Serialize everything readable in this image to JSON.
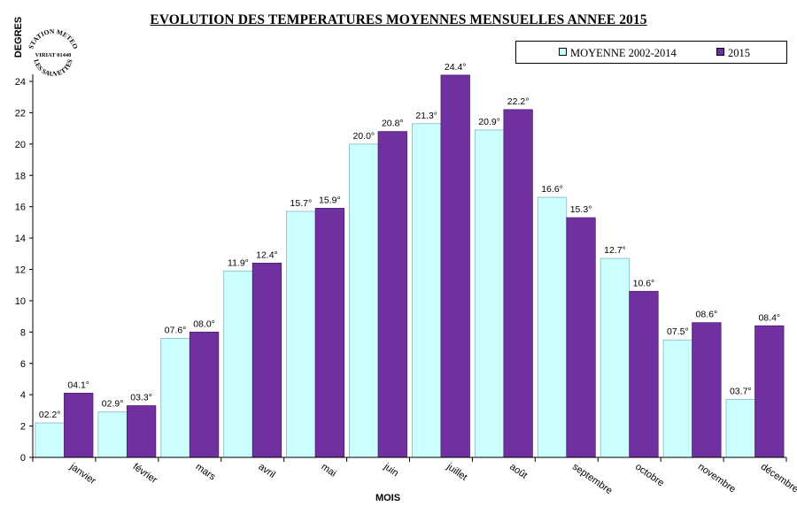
{
  "stamp": {
    "line1": "STATION METEO",
    "line2": "VIRIAT 01440",
    "line3": "LES SAUVETTES"
  },
  "chart_data": {
    "type": "bar",
    "title": "EVOLUTION DES TEMPERATURES MOYENNES MENSUELLES ANNEE 2015",
    "xlabel": "MOIS",
    "ylabel": "DEGRES",
    "ylim": [
      0,
      24
    ],
    "yticks": [
      0,
      2,
      4,
      6,
      8,
      10,
      12,
      14,
      16,
      18,
      20,
      22,
      24
    ],
    "grid": false,
    "legend_position": "top-right",
    "categories": [
      "janvier",
      "février",
      "mars",
      "avril",
      "mai",
      "juin",
      "juillet",
      "août",
      "septembre",
      "octobre",
      "novembre",
      "décembre"
    ],
    "series": [
      {
        "name": "MOYENNE 2002-2014",
        "color": "#ccffff",
        "values": [
          2.2,
          2.9,
          7.6,
          11.9,
          15.7,
          20.0,
          21.3,
          20.9,
          16.6,
          12.7,
          7.5,
          3.7
        ],
        "labels": [
          "02.2°",
          "02.9°",
          "07.6°",
          "11.9°",
          "15.7°",
          "20.0°",
          "21.3°",
          "20.9°",
          "16.6°",
          "12.7°",
          "07.5°",
          "03.7°"
        ]
      },
      {
        "name": "2015",
        "color": "#7030a0",
        "values": [
          4.1,
          3.3,
          8.0,
          12.4,
          15.9,
          20.8,
          24.4,
          22.2,
          15.3,
          10.6,
          8.6,
          8.4
        ],
        "labels": [
          "04.1°",
          "03.3°",
          "08.0°",
          "12.4°",
          "15.9°",
          "20.8°",
          "24.4°",
          "22.2°",
          "15.3°",
          "10.6°",
          "08.6°",
          "08.4°"
        ]
      }
    ]
  }
}
